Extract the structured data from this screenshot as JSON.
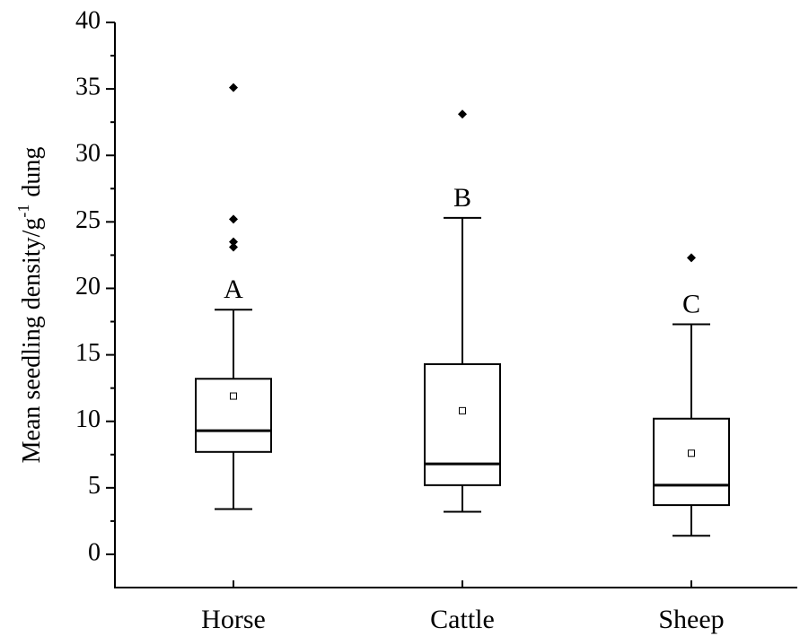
{
  "chart_data": {
    "type": "box",
    "y_label": {
      "text": "Mean seedling density/g",
      "superscript": "-1",
      "suffix": "dung"
    },
    "categories": [
      "Horse",
      "Cattle",
      "Sheep"
    ],
    "boxes": [
      {
        "whisker_low": 3.4,
        "q1": 7.7,
        "median": 9.3,
        "q3": 13.2,
        "whisker_high": 18.4,
        "mean": 11.9,
        "outliers": [
          35.1,
          25.2,
          23.5,
          23.1
        ],
        "annotation": "A"
      },
      {
        "whisker_low": 3.2,
        "q1": 5.2,
        "median": 6.8,
        "q3": 14.3,
        "whisker_high": 25.3,
        "mean": 10.8,
        "outliers": [
          33.1
        ],
        "annotation": "B"
      },
      {
        "whisker_low": 1.4,
        "q1": 3.7,
        "median": 5.2,
        "q3": 10.2,
        "whisker_high": 17.3,
        "mean": 7.6,
        "outliers": [
          22.3
        ],
        "annotation": "C"
      }
    ],
    "ylim": [
      -2.5,
      40
    ],
    "yticks": [
      0,
      5,
      10,
      15,
      20,
      25,
      30,
      35,
      40
    ],
    "yminor_ticks": [
      2.5,
      7.5,
      12.5,
      17.5,
      22.5,
      27.5,
      32.5,
      37.5
    ],
    "color": "#000000"
  }
}
